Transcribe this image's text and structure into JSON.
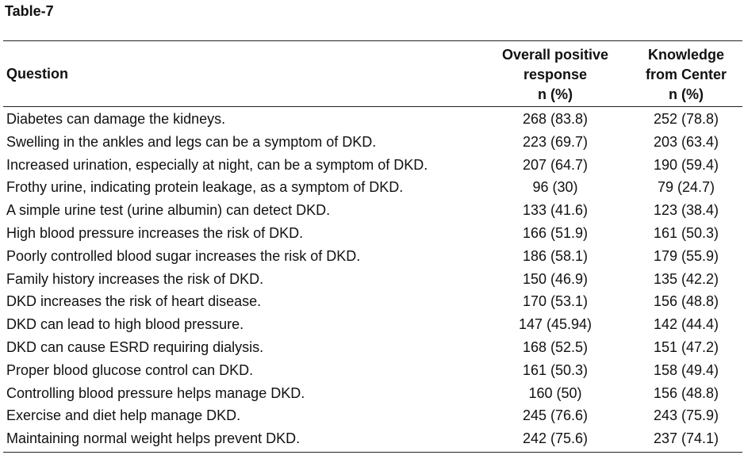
{
  "caption": "Table-7",
  "headers": {
    "question": "Question",
    "col1": [
      "Overall positive",
      "response",
      "n (%)"
    ],
    "col2": [
      "Knowledge",
      "from Center",
      "n (%)"
    ]
  },
  "rows": [
    {
      "question": "Diabetes can damage the kidneys.",
      "overall": "268 (83.8)",
      "center": "252 (78.8)"
    },
    {
      "question": "Swelling in the ankles and legs can be a symptom of DKD.",
      "overall": "223 (69.7)",
      "center": "203 (63.4)"
    },
    {
      "question": "Increased urination, especially at night, can be a symptom of DKD.",
      "overall": "207 (64.7)",
      "center": "190 (59.4)"
    },
    {
      "question": "Frothy urine, indicating protein leakage, as a symptom of DKD.",
      "overall": "96 (30)",
      "center": "79 (24.7)"
    },
    {
      "question": "A simple urine test (urine albumin) can detect DKD.",
      "overall": "133 (41.6)",
      "center": "123 (38.4)"
    },
    {
      "question": "High blood pressure increases the risk of DKD.",
      "overall": "166 (51.9)",
      "center": "161 (50.3)"
    },
    {
      "question": "Poorly controlled blood sugar increases the risk of DKD.",
      "overall": "186 (58.1)",
      "center": "179 (55.9)"
    },
    {
      "question": "Family history increases the risk of DKD.",
      "overall": "150 (46.9)",
      "center": "135 (42.2)"
    },
    {
      "question": "DKD increases the risk of heart disease.",
      "overall": "170 (53.1)",
      "center": "156 (48.8)"
    },
    {
      "question": "DKD can lead to high blood pressure.",
      "overall": "147 (45.94)",
      "center": "142 (44.4)"
    },
    {
      "question": "DKD can cause ESRD requiring dialysis.",
      "overall": "168 (52.5)",
      "center": "151 (47.2)"
    },
    {
      "question": "Proper blood glucose control can DKD.",
      "overall": "161 (50.3)",
      "center": "158 (49.4)"
    },
    {
      "question": "Controlling blood pressure helps manage DKD.",
      "overall": "160 (50)",
      "center": "156 (48.8)"
    },
    {
      "question": "Exercise and diet help manage DKD.",
      "overall": "245 (76.6)",
      "center": "243 (75.9)"
    },
    {
      "question": "Maintaining normal weight helps prevent DKD.",
      "overall": "242 (75.6)",
      "center": "237 (74.1)"
    }
  ]
}
